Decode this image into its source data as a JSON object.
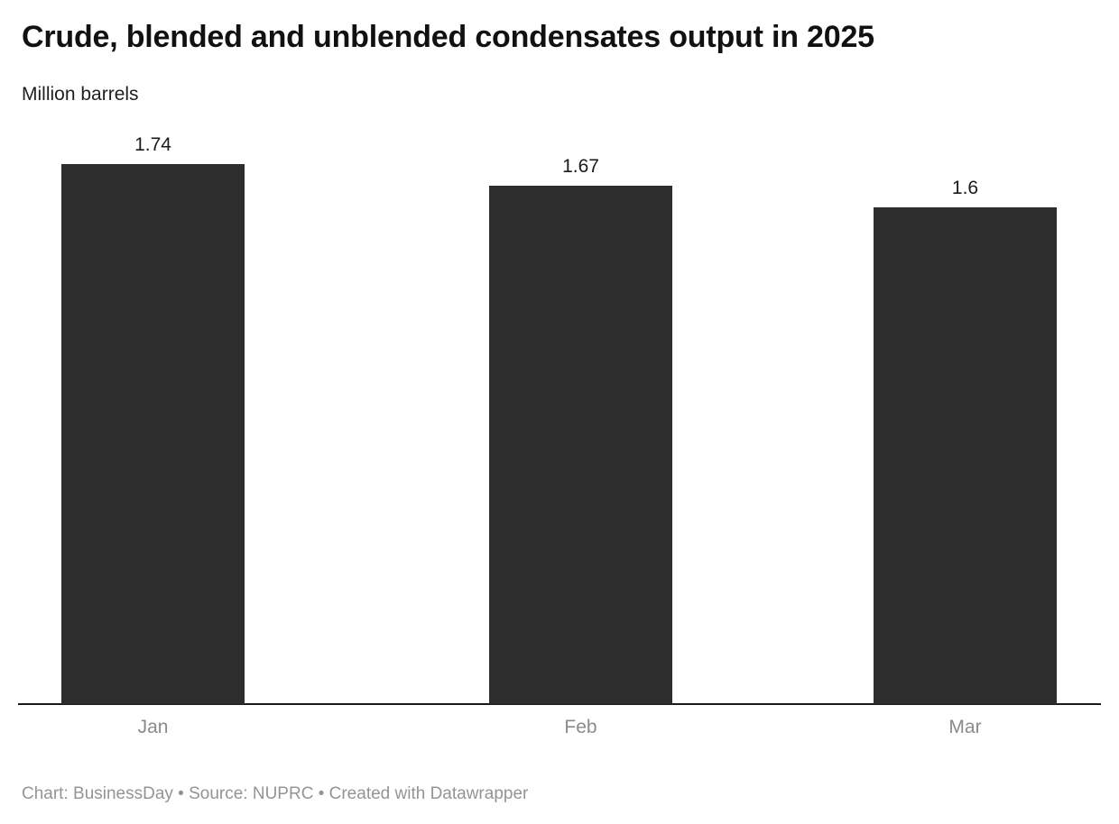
{
  "chart_data": {
    "type": "bar",
    "title": "Crude, blended and unblended condensates output in 2025",
    "subtitle": "Million barrels",
    "categories": [
      "Jan",
      "Feb",
      "Mar"
    ],
    "values": [
      1.74,
      1.67,
      1.6
    ],
    "value_labels": [
      "1.74",
      "1.67",
      "1.6"
    ],
    "ylim": [
      0,
      1.74
    ],
    "grid": false,
    "legend": "none",
    "data_labels_shown": true,
    "bar_color": "#2d2d2d",
    "axis_line_color": "#1a1a1a",
    "value_label_color": "#1a1a1a",
    "category_label_color": "#8b8b8b"
  },
  "footer": {
    "text": "Chart: BusinessDay • Source: NUPRC • Created with Datawrapper"
  }
}
